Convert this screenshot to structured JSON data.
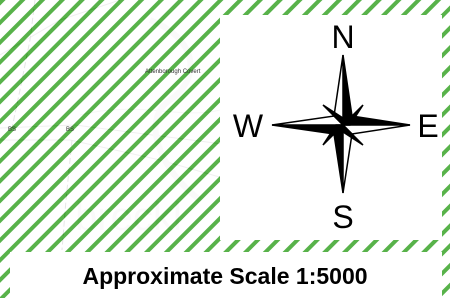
{
  "map": {
    "place_label": "Attenborough Covert",
    "parcel_labels": [
      "BS",
      "BS"
    ],
    "compass": {
      "north": "N",
      "east": "E",
      "south": "S",
      "west": "W"
    },
    "scale": "Approximate Scale 1:5000"
  }
}
